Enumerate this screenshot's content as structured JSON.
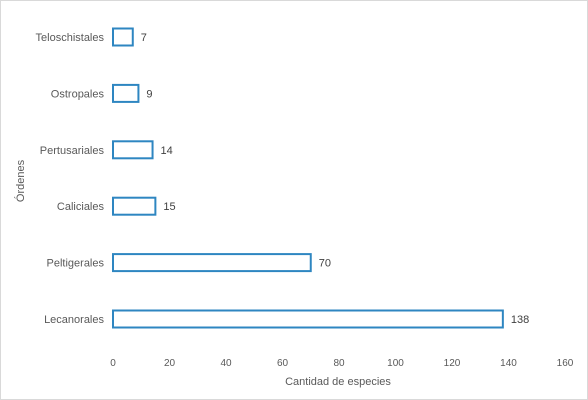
{
  "chart_data": {
    "type": "bar",
    "orientation": "horizontal",
    "title": "",
    "xlabel": "Cantidad de especies",
    "ylabel": "Órdenes",
    "categories": [
      "Teloschistales",
      "Ostropales",
      "Pertusariales",
      "Caliciales",
      "Peltigerales",
      "Lecanorales"
    ],
    "values": [
      7,
      9,
      14,
      15,
      70,
      138
    ],
    "data_labels": [
      "7",
      "9",
      "14",
      "15",
      "70",
      "138"
    ],
    "xlim": [
      0,
      160
    ],
    "x_ticks": [
      "0",
      "20",
      "40",
      "60",
      "80",
      "100",
      "120",
      "140",
      "160"
    ],
    "grid": false,
    "legend": "none",
    "bar_outline_color": "#2E86C1",
    "bar_fill_color": "#ffffff"
  }
}
